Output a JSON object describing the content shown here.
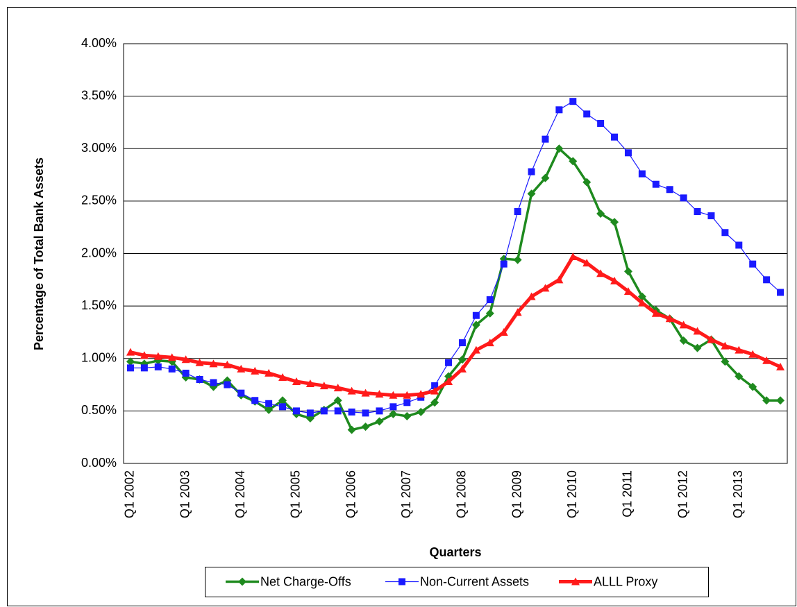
{
  "chart_data": {
    "type": "line",
    "x_label": "Quarters",
    "y_label": "Percentage of Total Bank Assets",
    "categories": [
      "Q1 2002",
      null,
      null,
      null,
      "Q1 2003",
      null,
      null,
      null,
      "Q1 2004",
      null,
      null,
      null,
      "Q1 2005",
      null,
      null,
      null,
      "Q1 2006",
      null,
      null,
      null,
      "Q1 2007",
      null,
      null,
      null,
      "Q1 2008",
      null,
      null,
      null,
      "Q1 2009",
      null,
      null,
      null,
      "Q1 2010",
      null,
      null,
      null,
      "Q1 2011",
      null,
      null,
      null,
      "Q1 2012",
      null,
      null,
      null,
      "Q1 2013",
      null,
      null,
      null
    ],
    "series": [
      {
        "name": "Net Charge-Offs",
        "color": "#1e8a1e",
        "marker": "diamond",
        "values": [
          0.97,
          0.95,
          0.98,
          0.97,
          0.82,
          0.8,
          0.73,
          0.79,
          0.65,
          0.59,
          0.51,
          0.6,
          0.47,
          0.43,
          0.51,
          0.6,
          0.32,
          0.35,
          0.4,
          0.47,
          0.45,
          0.49,
          0.58,
          0.83,
          0.99,
          1.32,
          1.43,
          1.95,
          1.94,
          2.57,
          2.72,
          3.0,
          2.88,
          2.68,
          2.38,
          2.3,
          1.83,
          1.59,
          1.46,
          1.38,
          1.17,
          1.1,
          1.18,
          0.97,
          0.83,
          0.73,
          0.6,
          0.6
        ]
      },
      {
        "name": "Non-Current Assets",
        "color": "#1a1aff",
        "marker": "square",
        "values": [
          0.91,
          0.91,
          0.92,
          0.9,
          0.86,
          0.8,
          0.77,
          0.75,
          0.67,
          0.6,
          0.57,
          0.54,
          0.5,
          0.48,
          0.5,
          0.5,
          0.49,
          0.48,
          0.5,
          0.54,
          0.58,
          0.63,
          0.74,
          0.96,
          1.15,
          1.41,
          1.56,
          1.9,
          2.4,
          2.78,
          3.09,
          3.37,
          3.45,
          3.33,
          3.24,
          3.11,
          2.96,
          2.76,
          2.66,
          2.61,
          2.53,
          2.4,
          2.36,
          2.2,
          2.08,
          1.9,
          1.75,
          1.63
        ]
      },
      {
        "name": "ALLL Proxy",
        "color": "#ff1a1a",
        "marker": "triangle",
        "values": [
          1.06,
          1.03,
          1.02,
          1.01,
          0.99,
          0.96,
          0.95,
          0.94,
          0.9,
          0.88,
          0.86,
          0.82,
          0.78,
          0.76,
          0.74,
          0.72,
          0.69,
          0.67,
          0.66,
          0.65,
          0.65,
          0.66,
          0.69,
          0.78,
          0.9,
          1.08,
          1.15,
          1.25,
          1.44,
          1.59,
          1.67,
          1.75,
          1.97,
          1.91,
          1.81,
          1.74,
          1.64,
          1.53,
          1.43,
          1.38,
          1.32,
          1.26,
          1.18,
          1.12,
          1.08,
          1.04,
          0.98,
          0.92
        ]
      }
    ],
    "ylim": [
      0,
      4
    ],
    "yticks": [
      {
        "value": 0,
        "label": "0.00%"
      },
      {
        "value": 0.5,
        "label": "0.50%"
      },
      {
        "value": 1,
        "label": "1.00%"
      },
      {
        "value": 1.5,
        "label": "1.50%"
      },
      {
        "value": 2,
        "label": "2.00%"
      },
      {
        "value": 2.5,
        "label": "2.50%"
      },
      {
        "value": 3,
        "label": "3.00%"
      },
      {
        "value": 3.5,
        "label": "3.50%"
      },
      {
        "value": 4,
        "label": "4.00%"
      }
    ],
    "grid": true,
    "legend": "bottom"
  }
}
